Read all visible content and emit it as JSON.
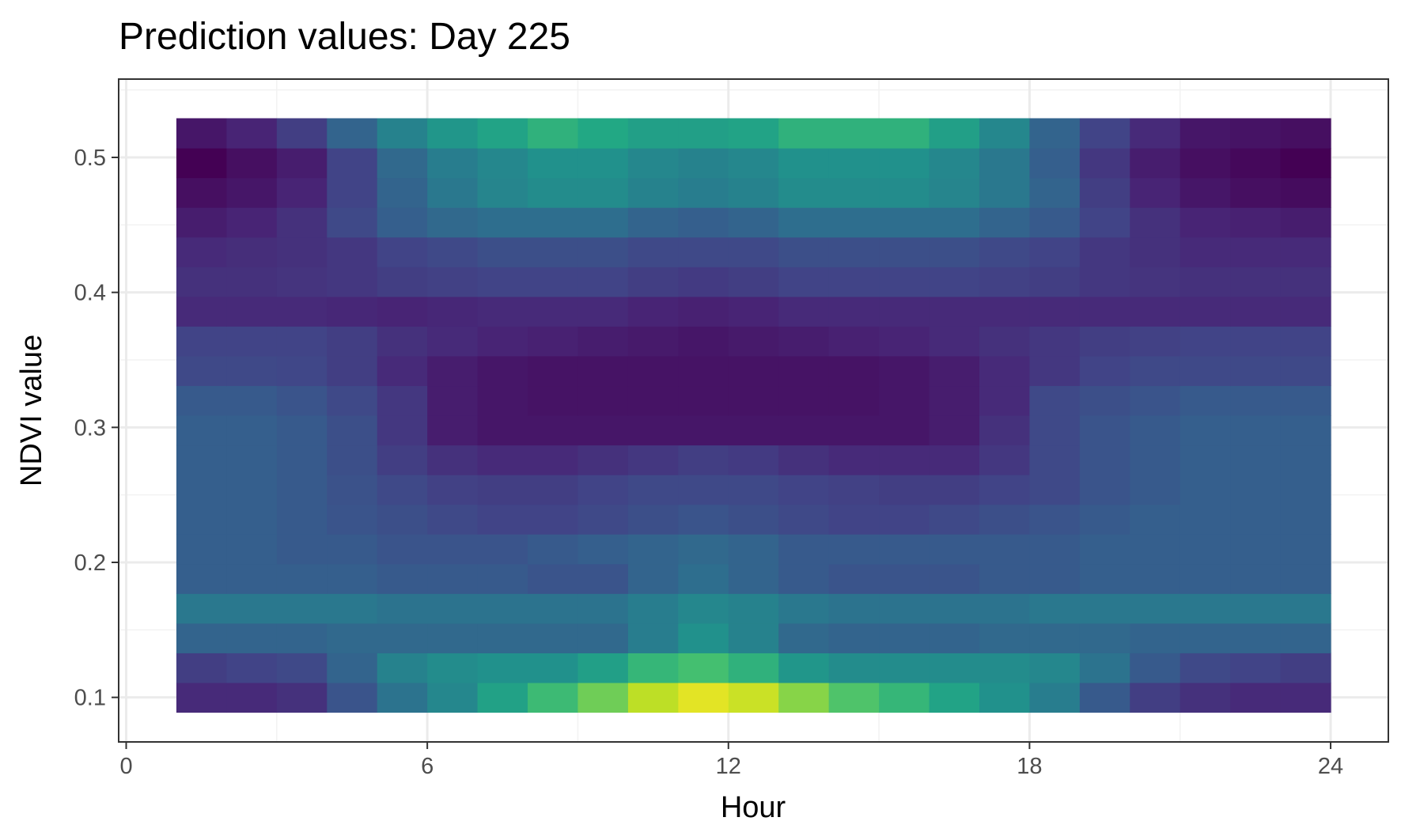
{
  "chart_data": {
    "type": "heatmap",
    "title": "Prediction values: Day 225",
    "xlabel": "Hour",
    "ylabel": "NDVI value",
    "xlim": [
      -0.15,
      25.15
    ],
    "ylim": [
      0.067,
      0.558
    ],
    "x_ticks": [
      0,
      6,
      12,
      18,
      24
    ],
    "y_ticks": [
      0.1,
      0.2,
      0.3,
      0.4,
      0.5
    ],
    "x_tick_labels": [
      "0",
      "6",
      "12",
      "18",
      "24"
    ],
    "y_tick_labels": [
      "0.1",
      "0.2",
      "0.3",
      "0.4",
      "0.5"
    ],
    "grid": true,
    "legend": "none",
    "colormap": "viridis",
    "x": [
      1.5,
      2.5,
      3.5,
      4.5,
      5.5,
      6.5,
      7.5,
      8.5,
      9.5,
      10.5,
      11.5,
      12.5,
      13.5,
      14.5,
      15.5,
      16.5,
      17.5,
      18.5,
      19.5,
      20.5,
      21.5,
      22.5,
      23.5
    ],
    "y": [
      0.1,
      0.122,
      0.144,
      0.166,
      0.188,
      0.21,
      0.232,
      0.254,
      0.276,
      0.298,
      0.32,
      0.342,
      0.364,
      0.386,
      0.408,
      0.43,
      0.452,
      0.474,
      0.496,
      0.518
    ],
    "z": [
      [
        0.12,
        0.12,
        0.14,
        0.26,
        0.38,
        0.46,
        0.57,
        0.68,
        0.78,
        0.9,
        0.96,
        0.92,
        0.82,
        0.72,
        0.66,
        0.58,
        0.5,
        0.42,
        0.28,
        0.18,
        0.14,
        0.12,
        0.12
      ],
      [
        0.18,
        0.2,
        0.22,
        0.32,
        0.44,
        0.48,
        0.5,
        0.5,
        0.56,
        0.66,
        0.7,
        0.64,
        0.52,
        0.48,
        0.48,
        0.48,
        0.48,
        0.46,
        0.38,
        0.28,
        0.22,
        0.2,
        0.18
      ],
      [
        0.32,
        0.32,
        0.32,
        0.34,
        0.34,
        0.34,
        0.34,
        0.34,
        0.34,
        0.42,
        0.5,
        0.44,
        0.34,
        0.32,
        0.32,
        0.32,
        0.34,
        0.34,
        0.34,
        0.32,
        0.32,
        0.32,
        0.32
      ],
      [
        0.4,
        0.4,
        0.4,
        0.4,
        0.38,
        0.38,
        0.38,
        0.38,
        0.38,
        0.42,
        0.46,
        0.44,
        0.4,
        0.38,
        0.38,
        0.38,
        0.38,
        0.4,
        0.4,
        0.4,
        0.4,
        0.4,
        0.4
      ],
      [
        0.3,
        0.3,
        0.3,
        0.3,
        0.28,
        0.28,
        0.28,
        0.26,
        0.26,
        0.32,
        0.36,
        0.32,
        0.28,
        0.26,
        0.26,
        0.26,
        0.28,
        0.28,
        0.3,
        0.3,
        0.3,
        0.3,
        0.3
      ],
      [
        0.3,
        0.3,
        0.28,
        0.28,
        0.26,
        0.26,
        0.26,
        0.28,
        0.3,
        0.32,
        0.34,
        0.32,
        0.28,
        0.28,
        0.28,
        0.28,
        0.28,
        0.28,
        0.3,
        0.3,
        0.3,
        0.3,
        0.3
      ],
      [
        0.3,
        0.3,
        0.28,
        0.26,
        0.24,
        0.22,
        0.2,
        0.2,
        0.22,
        0.24,
        0.26,
        0.24,
        0.22,
        0.2,
        0.2,
        0.22,
        0.24,
        0.26,
        0.28,
        0.3,
        0.3,
        0.3,
        0.3
      ],
      [
        0.3,
        0.3,
        0.28,
        0.25,
        0.22,
        0.19,
        0.18,
        0.18,
        0.2,
        0.22,
        0.22,
        0.22,
        0.2,
        0.19,
        0.18,
        0.18,
        0.2,
        0.22,
        0.26,
        0.28,
        0.3,
        0.3,
        0.3
      ],
      [
        0.3,
        0.3,
        0.28,
        0.24,
        0.18,
        0.14,
        0.12,
        0.12,
        0.14,
        0.16,
        0.18,
        0.17,
        0.14,
        0.12,
        0.12,
        0.12,
        0.16,
        0.22,
        0.26,
        0.28,
        0.3,
        0.3,
        0.3
      ],
      [
        0.3,
        0.3,
        0.28,
        0.24,
        0.16,
        0.08,
        0.06,
        0.06,
        0.06,
        0.06,
        0.06,
        0.06,
        0.06,
        0.06,
        0.06,
        0.08,
        0.14,
        0.22,
        0.26,
        0.28,
        0.3,
        0.3,
        0.3
      ],
      [
        0.28,
        0.28,
        0.26,
        0.22,
        0.16,
        0.08,
        0.06,
        0.05,
        0.05,
        0.05,
        0.05,
        0.05,
        0.05,
        0.05,
        0.06,
        0.08,
        0.12,
        0.22,
        0.24,
        0.26,
        0.28,
        0.28,
        0.28
      ],
      [
        0.22,
        0.22,
        0.21,
        0.18,
        0.12,
        0.08,
        0.06,
        0.05,
        0.05,
        0.05,
        0.05,
        0.05,
        0.05,
        0.05,
        0.06,
        0.08,
        0.12,
        0.16,
        0.2,
        0.22,
        0.22,
        0.22,
        0.22
      ],
      [
        0.2,
        0.2,
        0.2,
        0.18,
        0.14,
        0.12,
        0.1,
        0.09,
        0.08,
        0.07,
        0.06,
        0.07,
        0.08,
        0.09,
        0.1,
        0.12,
        0.14,
        0.16,
        0.18,
        0.19,
        0.2,
        0.2,
        0.2
      ],
      [
        0.12,
        0.12,
        0.12,
        0.11,
        0.1,
        0.11,
        0.12,
        0.12,
        0.12,
        0.1,
        0.09,
        0.1,
        0.12,
        0.12,
        0.12,
        0.12,
        0.12,
        0.12,
        0.12,
        0.12,
        0.12,
        0.12,
        0.12
      ],
      [
        0.14,
        0.14,
        0.15,
        0.16,
        0.18,
        0.19,
        0.2,
        0.2,
        0.2,
        0.18,
        0.17,
        0.18,
        0.2,
        0.2,
        0.2,
        0.2,
        0.19,
        0.18,
        0.16,
        0.15,
        0.14,
        0.14,
        0.14
      ],
      [
        0.12,
        0.13,
        0.14,
        0.16,
        0.2,
        0.22,
        0.24,
        0.24,
        0.24,
        0.22,
        0.22,
        0.22,
        0.24,
        0.24,
        0.24,
        0.24,
        0.22,
        0.2,
        0.16,
        0.14,
        0.12,
        0.12,
        0.12
      ],
      [
        0.08,
        0.1,
        0.14,
        0.22,
        0.3,
        0.34,
        0.36,
        0.36,
        0.36,
        0.32,
        0.3,
        0.32,
        0.36,
        0.36,
        0.36,
        0.36,
        0.32,
        0.28,
        0.2,
        0.14,
        0.1,
        0.09,
        0.08
      ],
      [
        0.04,
        0.06,
        0.1,
        0.2,
        0.32,
        0.4,
        0.45,
        0.48,
        0.48,
        0.44,
        0.42,
        0.44,
        0.48,
        0.48,
        0.48,
        0.45,
        0.4,
        0.32,
        0.18,
        0.1,
        0.06,
        0.04,
        0.03
      ],
      [
        0.0,
        0.04,
        0.08,
        0.2,
        0.34,
        0.42,
        0.46,
        0.5,
        0.5,
        0.46,
        0.44,
        0.46,
        0.5,
        0.5,
        0.5,
        0.46,
        0.4,
        0.3,
        0.16,
        0.08,
        0.04,
        0.02,
        0.0
      ],
      [
        0.06,
        0.1,
        0.18,
        0.32,
        0.44,
        0.52,
        0.58,
        0.64,
        0.6,
        0.56,
        0.56,
        0.58,
        0.64,
        0.64,
        0.64,
        0.56,
        0.46,
        0.32,
        0.2,
        0.12,
        0.06,
        0.05,
        0.04
      ]
    ]
  }
}
